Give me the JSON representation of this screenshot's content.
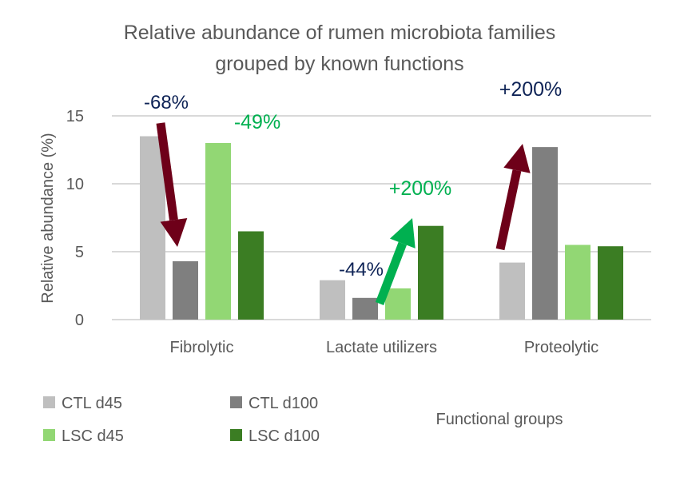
{
  "chart_data": {
    "type": "bar",
    "title": "Relative abundance of rumen microbiota families grouped by known functions",
    "title_lines": [
      "Relative abundance of rumen microbiota families",
      "grouped by known functions"
    ],
    "xlabel": "Functional groups",
    "ylabel": "Relative abundance (%)",
    "ylim": [
      0,
      15
    ],
    "yticks": [
      "0",
      "5",
      "10",
      "15"
    ],
    "grid": true,
    "legend_position": "bottom-left",
    "categories": [
      "Fibrolytic",
      "Lactate utilizers",
      "Proteolytic"
    ],
    "series": [
      {
        "name": "CTL d45",
        "color": "#bfbfbf",
        "values": [
          13.5,
          2.9,
          4.2
        ]
      },
      {
        "name": "CTL d100",
        "color": "#7f7f7f",
        "values": [
          4.3,
          1.6,
          12.7
        ]
      },
      {
        "name": "LSC d45",
        "color": "#92d774",
        "values": [
          13.0,
          2.3,
          5.5
        ]
      },
      {
        "name": "LSC d100",
        "color": "#3b7d23",
        "values": [
          6.5,
          6.9,
          5.4
        ]
      }
    ],
    "annotations": [
      {
        "text": "-68%",
        "color": "#0e2356",
        "category": "Fibrolytic",
        "arrow": "down",
        "arrow_color": "#6e0019"
      },
      {
        "text": "-49%",
        "color": "#00b050",
        "category": "Fibrolytic"
      },
      {
        "text": "-44%",
        "color": "#0e2356",
        "category": "Lactate utilizers"
      },
      {
        "text": "+200%",
        "color": "#00b050",
        "category": "Lactate utilizers",
        "arrow": "up",
        "arrow_color": "#00b050"
      },
      {
        "text": "+200%",
        "color": "#0e2356",
        "category": "Proteolytic",
        "arrow": "up",
        "arrow_color": "#6e0019"
      }
    ]
  }
}
